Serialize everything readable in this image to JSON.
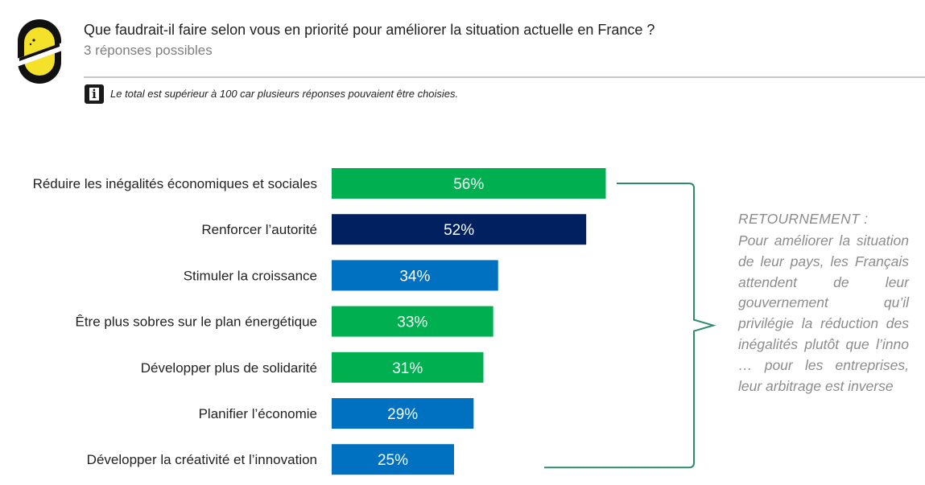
{
  "header": {
    "title": "Que faudrait-il faire selon vous en priorité pour améliorer la situation actuelle en France ?",
    "subtitle": "3 réponses possibles",
    "note": "Le total est supérieur à 100 car plusieurs réponses pouvaient être choisies.",
    "info_icon_glyph": "i"
  },
  "colors": {
    "green": "#00b050",
    "navy": "#002060",
    "blue": "#0070c0",
    "bracket": "#2e8b6e",
    "callout_text": "#8c8c8c"
  },
  "chart_data": {
    "type": "bar",
    "orientation": "horizontal",
    "categories": [
      "Réduire les inégalités économiques et sociales",
      "Renforcer l’autorité",
      "Stimuler la croissance",
      "Être plus sobres sur le plan énergétique",
      "Développer plus de solidarité",
      "Planifier l’économie",
      "Développer la créativité et l’innovation"
    ],
    "values": [
      56,
      52,
      34,
      33,
      31,
      29,
      25
    ],
    "value_labels": [
      "56%",
      "52%",
      "34%",
      "33%",
      "31%",
      "29%",
      "25%"
    ],
    "bar_colors": [
      "#00b050",
      "#002060",
      "#0070c0",
      "#00b050",
      "#00b050",
      "#0070c0",
      "#0070c0"
    ],
    "unit": "%",
    "grid": false,
    "legend": "none"
  },
  "callout": {
    "title": "RETOURNEMENT :",
    "body": "Pour améliorer la situation de leur pays, les Français attendent de leur gouvernement qu’il privilégie la réduction des inégalités plutôt que l’inno … pour les entreprises, leur arbitrage est inverse"
  }
}
